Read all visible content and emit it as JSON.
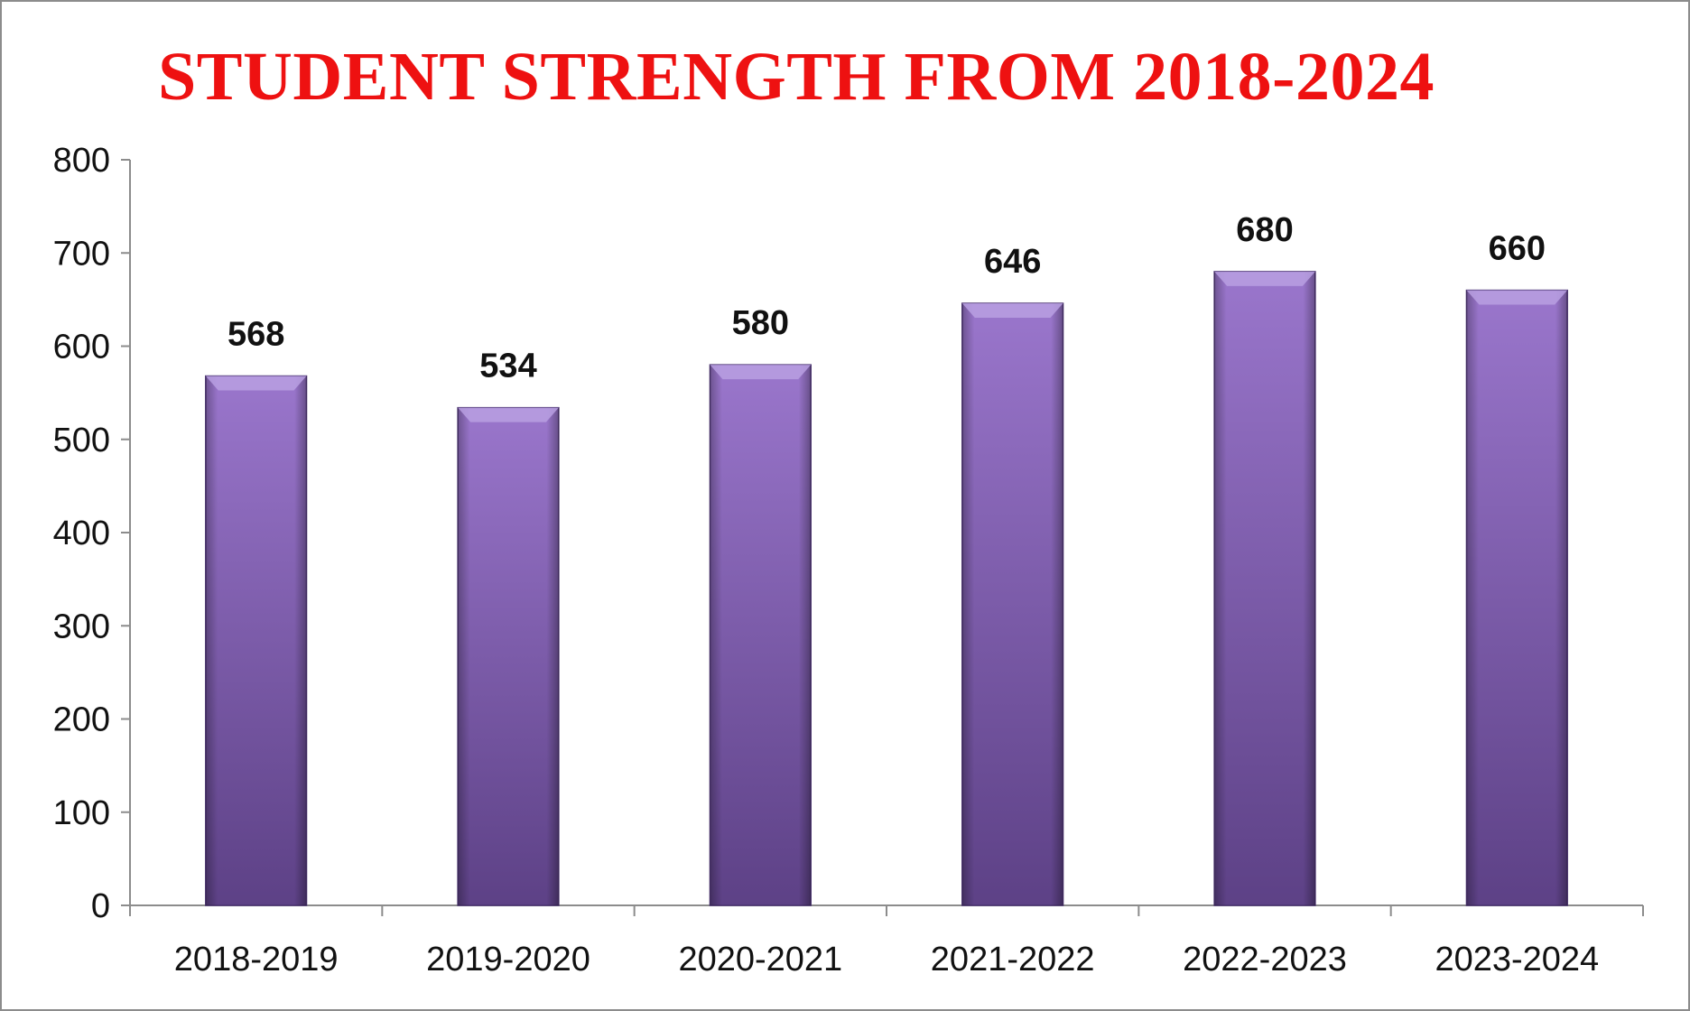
{
  "chart_data": {
    "type": "bar",
    "title": "STUDENT STRENGTH FROM 2018-2024",
    "categories": [
      "2018-2019",
      "2019-2020",
      "2020-2021",
      "2021-2022",
      "2022-2023",
      "2023-2024"
    ],
    "values": [
      568,
      534,
      580,
      646,
      680,
      660
    ],
    "data_labels": [
      "568",
      "534",
      "580",
      "646",
      "680",
      "660"
    ],
    "ylim": [
      0,
      800
    ],
    "y_ticks": [
      0,
      100,
      200,
      300,
      400,
      500,
      600,
      700,
      800
    ],
    "xlabel": "",
    "ylabel": "",
    "grid": false,
    "legend": "none",
    "colors": {
      "bar_top": "#9a76cc",
      "bar_bottom": "#5d4186",
      "bar_cap": "#b9a0e2",
      "title": "#ee1111"
    }
  }
}
